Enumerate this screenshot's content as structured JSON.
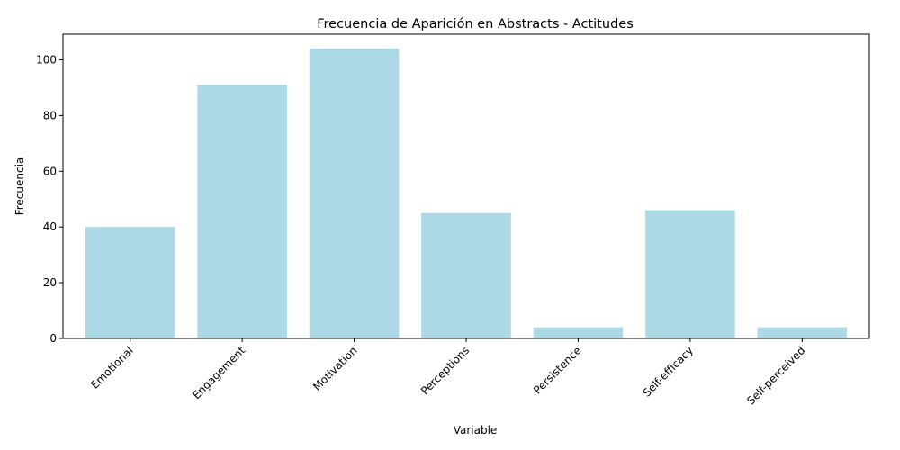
{
  "chart_data": {
    "type": "bar",
    "title": "Frecuencia de Aparición en Abstracts - Actitudes",
    "xlabel": "Variable",
    "ylabel": "Frecuencia",
    "categories": [
      "Emotional",
      "Engagement",
      "Motivation",
      "Perceptions",
      "Persistence",
      "Self-efficacy",
      "Self-perceived"
    ],
    "values": [
      40,
      91,
      104,
      45,
      4,
      46,
      4
    ],
    "ylim": [
      0,
      109.2
    ],
    "yticks": [
      0,
      20,
      40,
      60,
      80,
      100
    ],
    "bar_color": "#add8e6",
    "grid": false,
    "legend": "none"
  }
}
